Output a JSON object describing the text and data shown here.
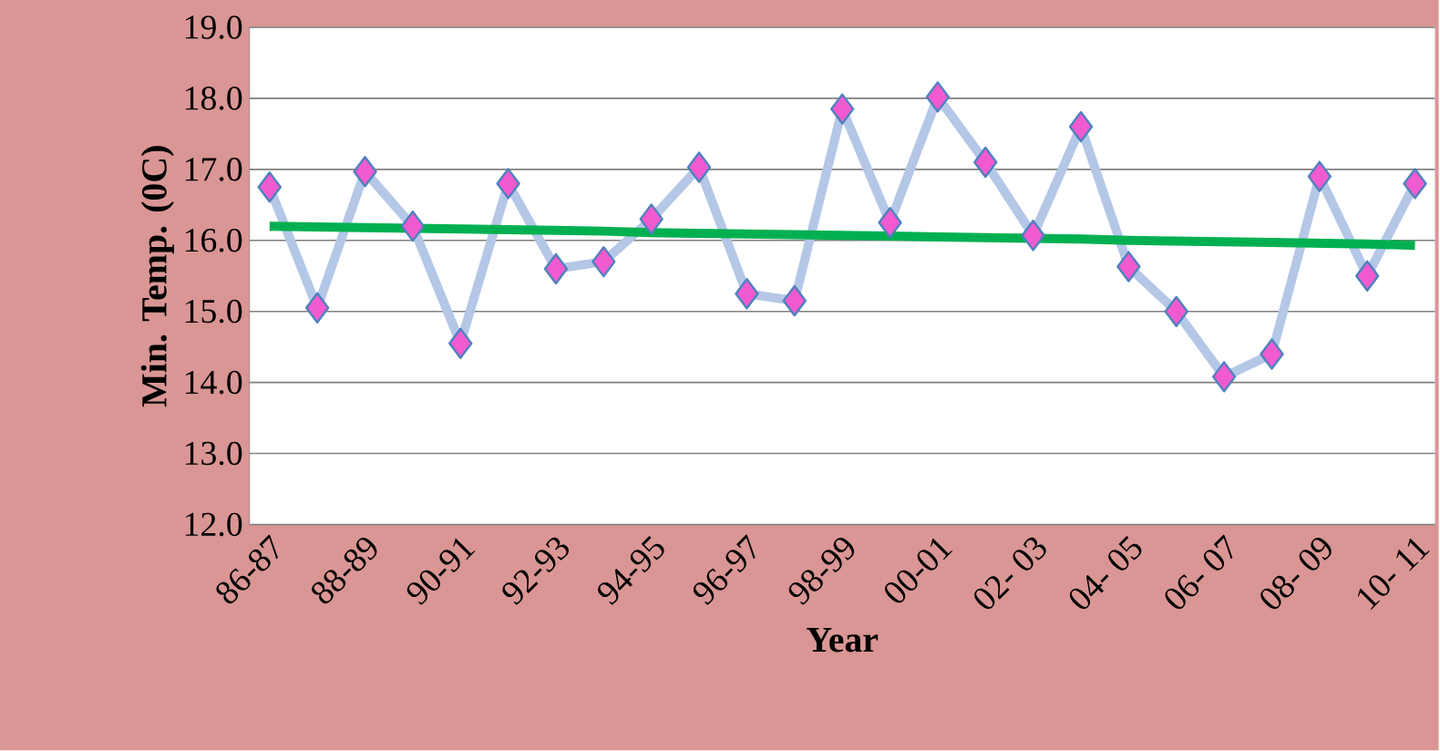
{
  "chart_data": {
    "type": "line",
    "xlabel": "Year",
    "ylabel": "Min. Temp. (0C)",
    "categories": [
      "86-87",
      null,
      "88-89",
      null,
      "90-91",
      null,
      "92-93",
      null,
      "94-95",
      null,
      "96-97",
      null,
      "98-99",
      null,
      "00-01",
      null,
      "02- 03",
      null,
      "04- 05",
      null,
      "06- 07",
      null,
      "08- 09",
      null,
      "10- 11"
    ],
    "series": [
      {
        "color": "#b4c7e7",
        "marker": "diamond",
        "values": [
          16.75,
          15.05,
          16.97,
          16.2,
          14.55,
          16.8,
          15.6,
          15.7,
          16.3,
          17.03,
          15.25,
          15.15,
          17.85,
          16.25,
          18.02,
          17.1,
          16.07,
          17.6,
          15.63,
          15.0,
          14.08,
          14.4,
          16.9,
          15.5,
          16.8
        ]
      },
      {
        "color": "#00b050",
        "marker": "none",
        "values": [
          16.2,
          16.19,
          16.18,
          16.17,
          16.16,
          16.15,
          16.14,
          16.13,
          16.11,
          16.1,
          16.09,
          16.08,
          16.07,
          16.06,
          16.05,
          16.04,
          16.03,
          16.02,
          16.0,
          15.99,
          15.98,
          15.97,
          15.96,
          15.95,
          15.93
        ]
      }
    ],
    "ylim": [
      12.0,
      19.0
    ],
    "yticks": [
      {
        "value": 12,
        "label": "12.0"
      },
      {
        "value": 13,
        "label": "13.0"
      },
      {
        "value": 14,
        "label": "14.0"
      },
      {
        "value": 15,
        "label": "15.0"
      },
      {
        "value": 16,
        "label": "16.0"
      },
      {
        "value": 17,
        "label": "17.0"
      },
      {
        "value": 18,
        "label": "18.0"
      },
      {
        "value": 19,
        "label": "19.0"
      }
    ],
    "grid": "y"
  }
}
